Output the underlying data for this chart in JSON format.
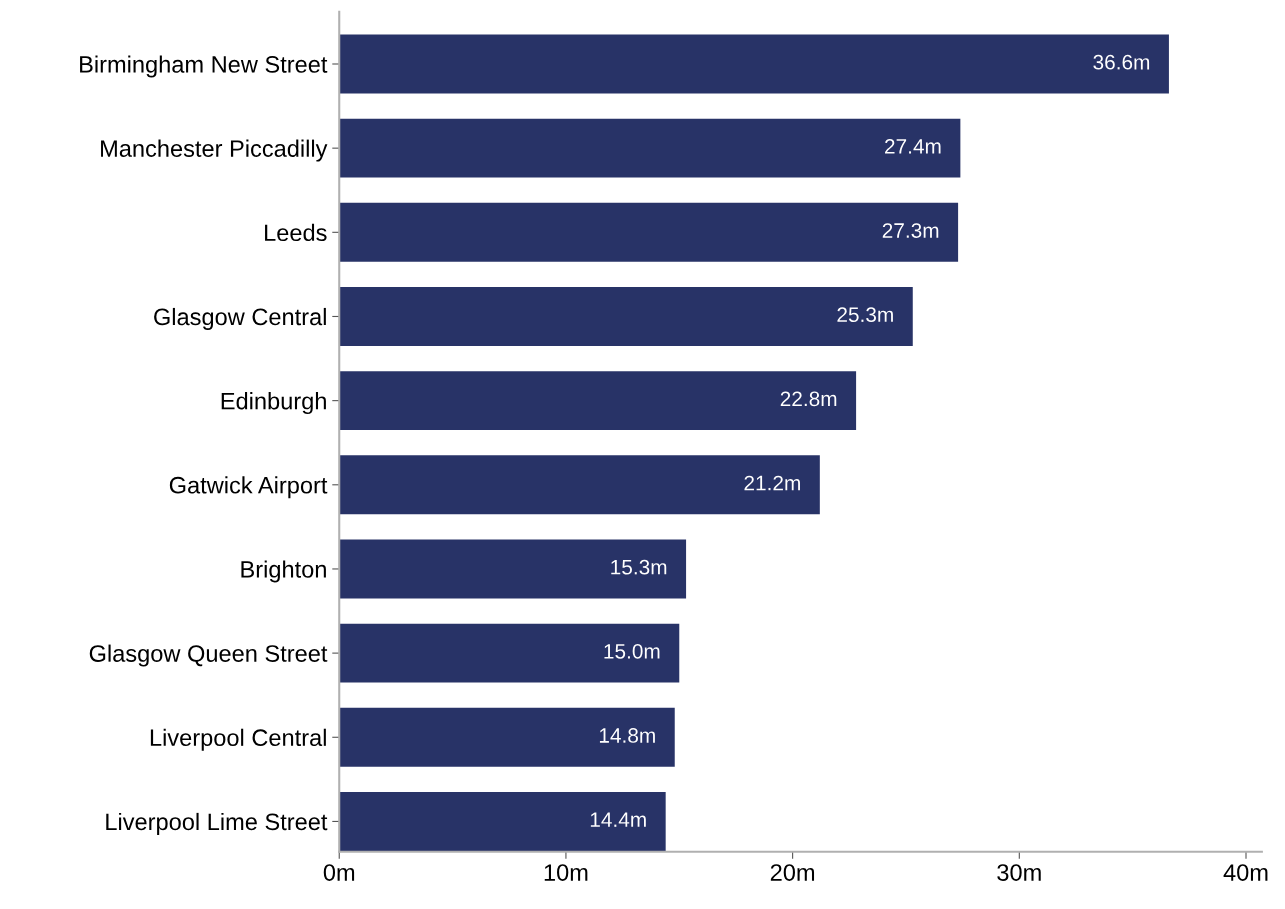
{
  "chart_data": {
    "type": "bar",
    "orientation": "horizontal",
    "categories": [
      "Birmingham New Street",
      "Manchester Piccadilly",
      "Leeds",
      "Glasgow Central",
      "Edinburgh",
      "Gatwick Airport",
      "Brighton",
      "Glasgow Queen Street",
      "Liverpool Central",
      "Liverpool Lime Street"
    ],
    "values": [
      36.6,
      27.4,
      27.3,
      25.3,
      22.8,
      21.2,
      15.3,
      15.0,
      14.8,
      14.4
    ],
    "value_labels": [
      "36.6m",
      "27.4m",
      "27.3m",
      "25.3m",
      "22.8m",
      "21.2m",
      "15.3m",
      "15.0m",
      "14.8m",
      "14.4m"
    ],
    "color": "#283367",
    "xlim": [
      0,
      40.7
    ],
    "xticks": [
      {
        "value": 0,
        "label": "0m"
      },
      {
        "value": 10,
        "label": "10m"
      },
      {
        "value": 20,
        "label": "20m"
      },
      {
        "value": 30,
        "label": "30m"
      },
      {
        "value": 40,
        "label": "40m"
      }
    ],
    "grid": false
  }
}
